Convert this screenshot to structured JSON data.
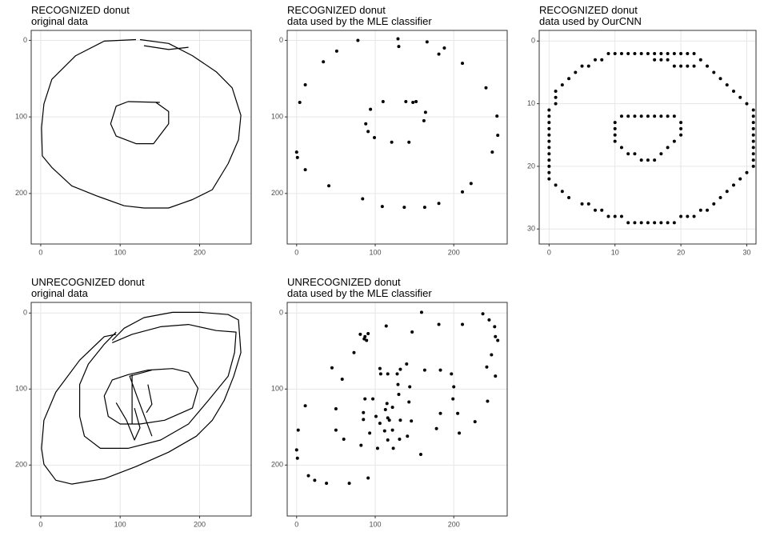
{
  "chart_data": [
    {
      "type": "line",
      "title": "RECOGNIZED donut",
      "subtitle": "original data",
      "color": "#000000",
      "grid": true,
      "y_reversed": true,
      "xlim": [
        -12,
        265
      ],
      "ylim": [
        -13,
        266
      ],
      "xticks": [
        0,
        100,
        200
      ],
      "yticks": [
        0,
        100,
        200
      ],
      "x": [
        120,
        80,
        44,
        14,
        4,
        1,
        2,
        14,
        39,
        70,
        105,
        130,
        161,
        191,
        216,
        236,
        249,
        252,
        241,
        221,
        191,
        161,
        125,
        null,
        130,
        161,
        186,
        null,
        150,
        110,
        95,
        88,
        95,
        120,
        142,
        161,
        161,
        145
      ],
      "values": [
        -1,
        1,
        20,
        51,
        83,
        114,
        151,
        166,
        190,
        203,
        216,
        219,
        219,
        208,
        195,
        161,
        130,
        98,
        62,
        41,
        20,
        4,
        -1,
        null,
        7,
        12,
        9,
        null,
        81,
        80,
        86,
        109,
        125,
        135,
        135,
        109,
        93,
        81
      ]
    },
    {
      "type": "scatter",
      "title": "RECOGNIZED donut",
      "subtitle": "data used by the MLE classifier",
      "color": "#000000",
      "grid": true,
      "y_reversed": true,
      "xlim": [
        -12,
        268
      ],
      "ylim": [
        -13,
        266
      ],
      "xticks": [
        0,
        100,
        200
      ],
      "yticks": [
        0,
        100,
        200
      ],
      "x": [
        78,
        129,
        130,
        166,
        188,
        181,
        51,
        34,
        211,
        11,
        4,
        241,
        94,
        110,
        139,
        148,
        152,
        164,
        162,
        88,
        91,
        99,
        121,
        143,
        255,
        256,
        0,
        1,
        11,
        249,
        41,
        222,
        211,
        84,
        109,
        137,
        163,
        181
      ],
      "values": [
        0,
        -2,
        8,
        2,
        10,
        18,
        14,
        28,
        30,
        58,
        81,
        62,
        90,
        80,
        80,
        81,
        80,
        94,
        105,
        109,
        119,
        127,
        133,
        133,
        99,
        124,
        146,
        153,
        169,
        146,
        190,
        187,
        198,
        207,
        217,
        218,
        218,
        213
      ]
    },
    {
      "type": "scatter",
      "title": "RECOGNIZED donut",
      "subtitle": "data used by OurCNN",
      "color": "#000000",
      "grid": true,
      "y_reversed": true,
      "xlim": [
        -1.5,
        31.4
      ],
      "ylim": [
        -1.7,
        32.4
      ],
      "xticks": [
        0,
        10,
        20,
        30
      ],
      "yticks": [
        0,
        10,
        20,
        30
      ],
      "x": [
        9,
        10,
        11,
        12,
        13,
        14,
        15,
        16,
        17,
        18,
        19,
        20,
        21,
        22,
        7,
        8,
        16,
        17,
        18,
        23,
        5,
        6,
        19,
        20,
        21,
        22,
        24,
        4,
        25,
        3,
        26,
        2,
        27,
        1,
        28,
        1,
        29,
        1,
        30,
        0,
        31,
        0,
        31,
        0,
        31,
        0,
        31,
        0,
        31,
        0,
        31,
        0,
        31,
        0,
        31,
        0,
        31,
        0,
        31,
        0,
        30,
        0,
        29,
        1,
        28,
        2,
        27,
        3,
        26,
        5,
        6,
        25,
        7,
        8,
        23,
        24,
        9,
        10,
        11,
        20,
        21,
        22,
        12,
        13,
        14,
        15,
        16,
        17,
        18,
        19,
        11,
        12,
        13,
        14,
        15,
        16,
        17,
        18,
        19,
        10,
        20,
        10,
        20,
        10,
        20,
        10,
        19,
        11,
        18,
        12,
        13,
        17,
        14,
        15,
        16
      ],
      "values": [
        2,
        2,
        2,
        2,
        2,
        2,
        2,
        2,
        2,
        2,
        2,
        2,
        2,
        2,
        3,
        3,
        3,
        3,
        3,
        3,
        4,
        4,
        4,
        4,
        4,
        4,
        4,
        5,
        5,
        6,
        6,
        7,
        7,
        8,
        8,
        9,
        9,
        10,
        10,
        11,
        11,
        12,
        12,
        13,
        13,
        14,
        14,
        15,
        15,
        16,
        16,
        17,
        17,
        18,
        18,
        19,
        19,
        20,
        20,
        21,
        21,
        22,
        22,
        23,
        23,
        24,
        24,
        25,
        25,
        26,
        26,
        26,
        27,
        27,
        27,
        27,
        28,
        28,
        28,
        28,
        28,
        28,
        29,
        29,
        29,
        29,
        29,
        29,
        29,
        29,
        12,
        12,
        12,
        12,
        12,
        12,
        12,
        12,
        12,
        13,
        13,
        14,
        14,
        15,
        15,
        16,
        16,
        17,
        17,
        18,
        18,
        18,
        19,
        19,
        19
      ]
    },
    {
      "type": "line",
      "title": "UNRECOGNIZED donut",
      "subtitle": "original data",
      "color": "#000000",
      "grid": true,
      "y_reversed": true,
      "xlim": [
        -12,
        265
      ],
      "ylim": [
        -14,
        267
      ],
      "xticks": [
        0,
        100,
        200
      ],
      "yticks": [
        0,
        100,
        200
      ],
      "x": [
        95,
        80,
        49,
        19,
        4,
        1,
        4,
        19,
        39,
        80,
        120,
        161,
        196,
        216,
        231,
        243,
        252,
        249,
        236,
        201,
        166,
        130,
        105,
        90,
        null,
        90,
        115,
        151,
        186,
        221,
        246,
        244,
        236,
        211,
        186,
        151,
        110,
        75,
        55,
        49,
        49,
        60,
        80,
        95,
        null,
        110,
        90,
        80,
        85,
        100,
        125,
        156,
        191,
        198,
        186,
        166,
        135,
        110,
        null,
        115,
        115,
        null,
        140,
        112,
        121,
        140,
        null,
        95,
        108,
        118,
        125,
        118,
        null,
        135,
        140,
        133
      ],
      "values": [
        28,
        31,
        62,
        104,
        141,
        178,
        199,
        220,
        225,
        218,
        202,
        183,
        162,
        141,
        115,
        83,
        52,
        9,
        2,
        -1,
        -1,
        6,
        20,
        36,
        null,
        39,
        28,
        18,
        15,
        23,
        25,
        52,
        83,
        115,
        146,
        167,
        178,
        178,
        162,
        136,
        94,
        67,
        41,
        25,
        null,
        81,
        88,
        109,
        136,
        146,
        146,
        141,
        125,
        99,
        78,
        73,
        75,
        81,
        null,
        81,
        146,
        null,
        75,
        83,
        109,
        162,
        null,
        118,
        141,
        167,
        151,
        125,
        null,
        94,
        120,
        131
      ]
    },
    {
      "type": "scatter",
      "title": "UNRECOGNIZED donut",
      "subtitle": "data used by the MLE classifier",
      "color": "#000000",
      "grid": true,
      "y_reversed": true,
      "xlim": [
        -12,
        268
      ],
      "ylim": [
        -14,
        267
      ],
      "xticks": [
        0,
        100,
        200
      ],
      "yticks": [
        0,
        100,
        200
      ],
      "x": [
        159,
        181,
        211,
        237,
        245,
        252,
        253,
        256,
        87,
        81,
        86,
        89,
        91,
        114,
        147,
        73,
        248,
        242,
        45,
        106,
        140,
        132,
        58,
        107,
        116,
        128,
        163,
        183,
        253,
        197,
        129,
        144,
        87,
        97,
        130,
        200,
        199,
        243,
        11,
        50,
        85,
        115,
        122,
        143,
        113,
        183,
        205,
        116,
        101,
        118,
        132,
        146,
        85,
        93,
        106,
        122,
        112,
        116,
        131,
        141,
        178,
        207,
        227,
        50,
        60,
        82,
        103,
        123,
        158,
        0,
        1,
        15,
        23,
        38,
        67,
        91,
        2
      ],
      "values": [
        -1,
        15,
        15,
        1,
        9,
        18,
        31,
        36,
        31,
        28,
        34,
        36,
        27,
        17,
        25,
        52,
        55,
        71,
        72,
        73,
        67,
        74,
        87,
        80,
        80,
        80,
        75,
        75,
        83,
        80,
        94,
        97,
        113,
        113,
        107,
        97,
        113,
        116,
        122,
        126,
        131,
        119,
        124,
        117,
        127,
        132,
        132,
        138,
        136,
        141,
        141,
        142,
        140,
        158,
        145,
        154,
        155,
        167,
        166,
        162,
        152,
        158,
        143,
        154,
        166,
        174,
        178,
        178,
        186,
        180,
        191,
        214,
        220,
        224,
        224,
        217,
        154
      ]
    }
  ]
}
